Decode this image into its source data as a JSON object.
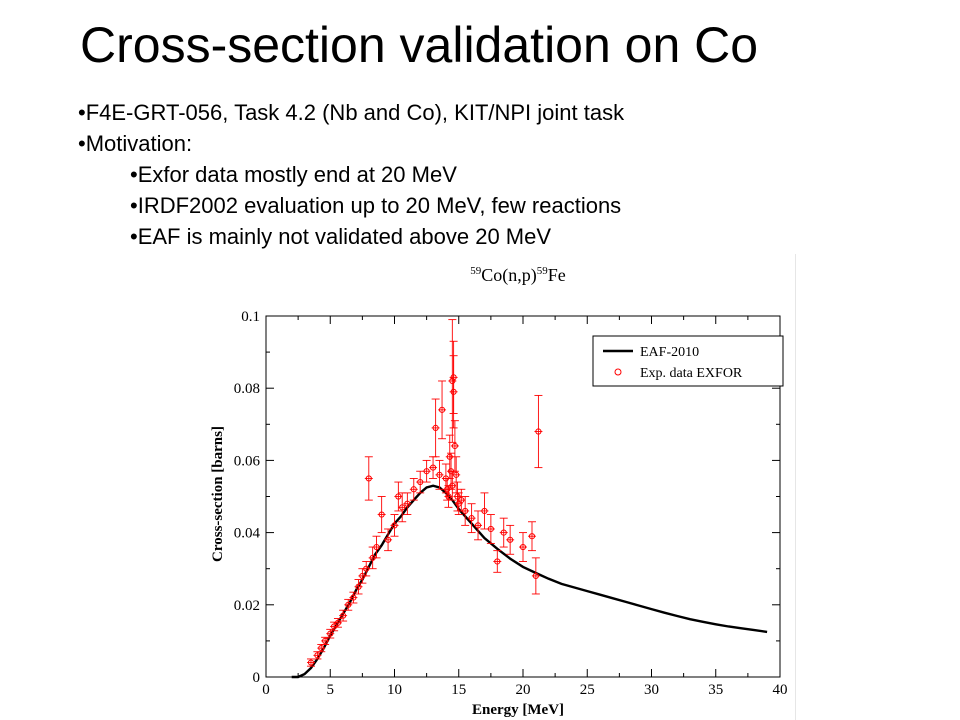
{
  "slide": {
    "title": "Cross-section validation on Co",
    "bullets": [
      {
        "text": "•F4E-GRT-056, Task 4.2 (Nb and Co), KIT/NPI joint task",
        "level": 1
      },
      {
        "text": "•Motivation:",
        "level": 1
      },
      {
        "text": "•Exfor data mostly end at 20 MeV",
        "level": 2
      },
      {
        "text": "•IRDF2002 evaluation up to 20 MeV, few reactions",
        "level": 2
      },
      {
        "text": "•EAF is mainly not validated above 20 MeV",
        "level": 2
      }
    ]
  },
  "chart_data": {
    "type": "line",
    "title": "59Co(n,p)59Fe",
    "title_parts": {
      "sup1": "59",
      "base1": "Co(n,p)",
      "sup2": "59",
      "base2": "Fe"
    },
    "xlabel": "Energy [MeV]",
    "ylabel": "Cross-section [barns]",
    "xlim": [
      0,
      40
    ],
    "ylim": [
      0,
      0.1
    ],
    "xticks": [
      0,
      5,
      10,
      15,
      20,
      25,
      30,
      35,
      40
    ],
    "yticks": [
      0,
      0.02,
      0.04,
      0.06,
      0.08,
      0.1
    ],
    "ytick_labels": [
      "0",
      "0.02",
      "0.04",
      "0.06",
      "0.08",
      "0.1"
    ],
    "grid": false,
    "legend_position": "top-right",
    "colors": {
      "eaf": "#000000",
      "exp": "#ff0000"
    },
    "series": [
      {
        "name": "EAF-2010",
        "style": "line",
        "x": [
          2.0,
          2.5,
          3.0,
          3.5,
          4.0,
          4.5,
          5.0,
          5.5,
          6.0,
          6.5,
          7.0,
          7.5,
          8.0,
          8.5,
          9.0,
          9.5,
          10.0,
          10.5,
          11.0,
          11.5,
          12.0,
          12.5,
          13.0,
          13.5,
          14.0,
          14.5,
          15.0,
          16.0,
          17.0,
          18.0,
          19.0,
          20.0,
          21.0,
          22.0,
          23.0,
          24.0,
          25.0,
          26.0,
          27.0,
          28.0,
          29.0,
          30.0,
          31.0,
          32.0,
          33.0,
          34.0,
          35.0,
          36.0,
          37.0,
          38.0,
          39.0
        ],
        "y": [
          0.0,
          0.0,
          0.0008,
          0.0025,
          0.005,
          0.008,
          0.0115,
          0.0145,
          0.0175,
          0.0205,
          0.024,
          0.027,
          0.0305,
          0.034,
          0.0365,
          0.0395,
          0.0425,
          0.0445,
          0.047,
          0.049,
          0.051,
          0.0525,
          0.053,
          0.0525,
          0.051,
          0.049,
          0.0465,
          0.0425,
          0.0385,
          0.0355,
          0.0328,
          0.0305,
          0.0288,
          0.0272,
          0.0258,
          0.0248,
          0.0238,
          0.0228,
          0.0218,
          0.0208,
          0.0198,
          0.0188,
          0.0178,
          0.0169,
          0.016,
          0.0153,
          0.0146,
          0.014,
          0.0135,
          0.013,
          0.0125
        ]
      },
      {
        "name": "Exp. data EXFOR",
        "style": "markers",
        "x": [
          3.5,
          4.0,
          4.3,
          4.6,
          5.0,
          5.3,
          5.6,
          6.0,
          6.4,
          6.8,
          7.2,
          7.5,
          7.8,
          8.0,
          8.3,
          8.6,
          9.0,
          9.5,
          10.0,
          10.3,
          10.6,
          11.0,
          11.5,
          12.0,
          12.5,
          13.0,
          13.2,
          13.5,
          13.7,
          14.0,
          14.1,
          14.2,
          14.3,
          14.4,
          14.5,
          14.5,
          14.6,
          14.6,
          14.7,
          14.8,
          14.9,
          15.0,
          15.2,
          15.5,
          16.0,
          16.5,
          17.0,
          17.5,
          18.0,
          18.5,
          19.0,
          20.0,
          20.7,
          21.0,
          21.2
        ],
        "y": [
          0.004,
          0.006,
          0.008,
          0.01,
          0.012,
          0.014,
          0.015,
          0.017,
          0.02,
          0.022,
          0.025,
          0.028,
          0.03,
          0.055,
          0.033,
          0.036,
          0.045,
          0.038,
          0.042,
          0.05,
          0.047,
          0.048,
          0.052,
          0.054,
          0.057,
          0.058,
          0.069,
          0.056,
          0.074,
          0.055,
          0.052,
          0.05,
          0.061,
          0.057,
          0.053,
          0.082,
          0.083,
          0.079,
          0.064,
          0.056,
          0.05,
          0.048,
          0.049,
          0.046,
          0.044,
          0.042,
          0.046,
          0.041,
          0.032,
          0.04,
          0.038,
          0.036,
          0.039,
          0.028,
          0.068
        ],
        "err": [
          0.001,
          0.001,
          0.001,
          0.001,
          0.0012,
          0.0012,
          0.0012,
          0.0015,
          0.0015,
          0.0015,
          0.002,
          0.002,
          0.002,
          0.006,
          0.003,
          0.003,
          0.005,
          0.003,
          0.003,
          0.004,
          0.004,
          0.003,
          0.003,
          0.003,
          0.003,
          0.003,
          0.008,
          0.004,
          0.008,
          0.004,
          0.003,
          0.003,
          0.006,
          0.005,
          0.004,
          0.017,
          0.01,
          0.01,
          0.007,
          0.005,
          0.004,
          0.003,
          0.003,
          0.004,
          0.004,
          0.004,
          0.005,
          0.004,
          0.003,
          0.004,
          0.004,
          0.004,
          0.004,
          0.005,
          0.01
        ]
      }
    ]
  }
}
